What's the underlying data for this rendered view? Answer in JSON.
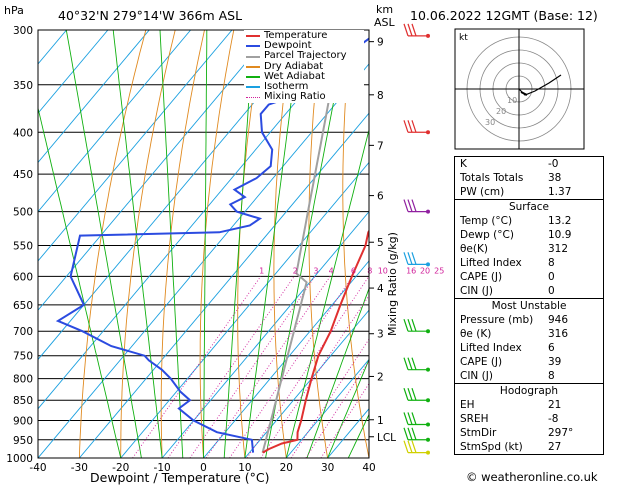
{
  "header": {
    "location": "40°32'N  279°14'W  366m  ASL",
    "datetime": "10.06.2022  12GMT  (Base: 12)",
    "hpa_label": "hPa",
    "km_label": "km",
    "asl_label": "ASL"
  },
  "chart_data": {
    "type": "skew-t",
    "xlabel": "Dewpoint / Temperature (°C)",
    "ylabel_right": "Mixing Ratio (g/kg)",
    "x_ticks": [
      -40,
      -30,
      -20,
      -10,
      0,
      10,
      20,
      30,
      40
    ],
    "pressure_levels": [
      300,
      350,
      400,
      450,
      500,
      550,
      600,
      650,
      700,
      750,
      800,
      850,
      900,
      950,
      1000
    ],
    "km_ticks": [
      {
        "label": "9",
        "p": 310
      },
      {
        "label": "8",
        "p": 360
      },
      {
        "label": "7",
        "p": 415
      },
      {
        "label": "6",
        "p": 478
      },
      {
        "label": "5",
        "p": 545
      },
      {
        "label": "4",
        "p": 620
      },
      {
        "label": "3",
        "p": 705
      },
      {
        "label": "2",
        "p": 795
      },
      {
        "label": "1",
        "p": 898
      },
      {
        "label": "LCL",
        "p": 942
      }
    ],
    "mixing_ratio_labels": [
      "1",
      "2",
      "3",
      "4",
      "6",
      "8",
      "10",
      "16",
      "20",
      "25"
    ],
    "mixing_ratio_values": [
      1,
      2,
      3,
      4,
      6,
      8,
      10,
      16,
      20,
      25
    ],
    "legend": [
      "Temperature",
      "Dewpoint",
      "Parcel Trajectory",
      "Dry Adiabat",
      "Wet Adiabat",
      "Isotherm",
      "Mixing Ratio"
    ],
    "colors": {
      "temperature": "#e03030",
      "dewpoint": "#2b4be0",
      "parcel": "#a0a0a0",
      "dry_adiabat": "#e08a20",
      "wet_adiabat": "#10b010",
      "isotherm": "#1aa0e0",
      "mixing_ratio": "#d0209a"
    },
    "temperature": [
      [
        300,
        -31
      ],
      [
        320,
        -29
      ],
      [
        350,
        -25
      ],
      [
        380,
        -22
      ],
      [
        400,
        -18
      ],
      [
        430,
        -14
      ],
      [
        450,
        -12
      ],
      [
        480,
        -9
      ],
      [
        500,
        -7
      ],
      [
        530,
        -6
      ],
      [
        550,
        -4
      ],
      [
        600,
        -1
      ],
      [
        650,
        2
      ],
      [
        700,
        5
      ],
      [
        750,
        7
      ],
      [
        800,
        10
      ],
      [
        850,
        13
      ],
      [
        900,
        16
      ],
      [
        930,
        17.5
      ],
      [
        950,
        19
      ],
      [
        960,
        16
      ],
      [
        975,
        14
      ],
      [
        985,
        13.2
      ]
    ],
    "dewpoint": [
      [
        300,
        -44
      ],
      [
        320,
        -47
      ],
      [
        340,
        -44
      ],
      [
        350,
        -46
      ],
      [
        370,
        -56
      ],
      [
        380,
        -56
      ],
      [
        400,
        -52
      ],
      [
        420,
        -46
      ],
      [
        440,
        -43
      ],
      [
        455,
        -44
      ],
      [
        470,
        -47
      ],
      [
        480,
        -43
      ],
      [
        490,
        -45
      ],
      [
        500,
        -42
      ],
      [
        510,
        -35
      ],
      [
        520,
        -36
      ],
      [
        530,
        -42
      ],
      [
        535,
        -75
      ],
      [
        600,
        -69
      ],
      [
        650,
        -60
      ],
      [
        680,
        -63
      ],
      [
        700,
        -55
      ],
      [
        730,
        -45
      ],
      [
        750,
        -35
      ],
      [
        760,
        -33
      ],
      [
        780,
        -28
      ],
      [
        800,
        -24
      ],
      [
        830,
        -19
      ],
      [
        850,
        -15
      ],
      [
        870,
        -16
      ],
      [
        900,
        -10
      ],
      [
        930,
        -2
      ],
      [
        950,
        8
      ],
      [
        985,
        10.9
      ]
    ]
  },
  "hodograph": {
    "label": "kt",
    "ring_labels": [
      "10",
      "20",
      "30"
    ]
  },
  "indices": [
    {
      "label": "K",
      "value": "-0"
    },
    {
      "label": "Totals Totals",
      "value": "38"
    },
    {
      "label": "PW (cm)",
      "value": "1.37"
    }
  ],
  "surface": {
    "title": "Surface",
    "rows": [
      {
        "label": "Temp (°C)",
        "value": "13.2"
      },
      {
        "label": "Dewp (°C)",
        "value": "10.9"
      },
      {
        "label": "θe(K)",
        "value": "312"
      },
      {
        "label": "Lifted Index",
        "value": "8"
      },
      {
        "label": "CAPE (J)",
        "value": "0"
      },
      {
        "label": "CIN (J)",
        "value": "0"
      }
    ]
  },
  "most_unstable": {
    "title": "Most Unstable",
    "rows": [
      {
        "label": "Pressure (mb)",
        "value": "946"
      },
      {
        "label": "θe (K)",
        "value": "316"
      },
      {
        "label": "Lifted Index",
        "value": "6"
      },
      {
        "label": "CAPE (J)",
        "value": "39"
      },
      {
        "label": "CIN (J)",
        "value": "8"
      }
    ]
  },
  "hodograph_table": {
    "title": "Hodograph",
    "rows": [
      {
        "label": "EH",
        "value": "21"
      },
      {
        "label": "SREH",
        "value": "-8"
      },
      {
        "label": "StmDir",
        "value": "297°"
      },
      {
        "label": "StmSpd (kt)",
        "value": "27"
      }
    ]
  },
  "footer": {
    "credit": "© weatheronline.co.uk"
  }
}
